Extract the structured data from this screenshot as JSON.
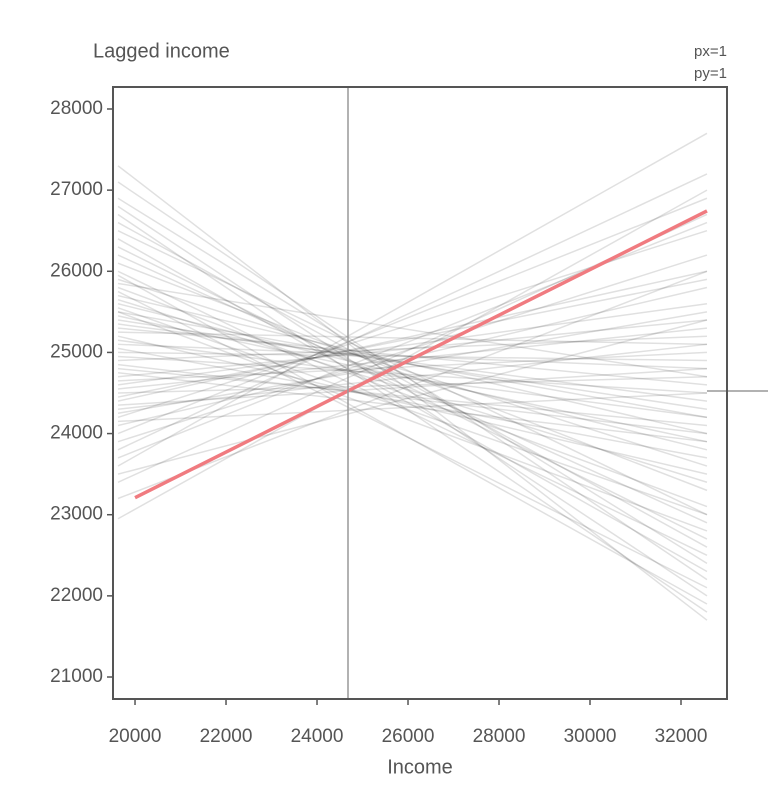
{
  "chart_data": {
    "type": "line",
    "y_label": "Lagged income",
    "x_label": "Income",
    "annotations": [
      "px=1",
      "py=1"
    ],
    "xlim": [
      19516,
      33011
    ],
    "ylim": [
      20729,
      28271
    ],
    "xticks": [
      20000,
      22000,
      24000,
      26000,
      28000,
      30000,
      32000
    ],
    "yticks": [
      21000,
      22000,
      23000,
      24000,
      25000,
      26000,
      27000,
      28000
    ],
    "x": [
      19626,
      32571
    ],
    "line_color": "#000000",
    "line_alpha": 0.12,
    "series": [
      {
        "values": [
          27300,
          21700
        ]
      },
      {
        "values": [
          27100,
          22200
        ]
      },
      {
        "values": [
          26800,
          22000
        ]
      },
      {
        "values": [
          26600,
          22600
        ]
      },
      {
        "values": [
          26400,
          22300
        ]
      },
      {
        "values": [
          26200,
          22900
        ]
      },
      {
        "values": [
          26100,
          23300
        ]
      },
      {
        "values": [
          26000,
          22500
        ]
      },
      {
        "values": [
          25900,
          23600
        ]
      },
      {
        "values": [
          25800,
          23100
        ]
      },
      {
        "values": [
          25700,
          24000
        ]
      },
      {
        "values": [
          25600,
          23800
        ]
      },
      {
        "values": [
          25500,
          22800
        ]
      },
      {
        "values": [
          25400,
          24300
        ]
      },
      {
        "values": [
          25300,
          24600
        ]
      },
      {
        "values": [
          25200,
          23500
        ]
      },
      {
        "values": [
          25100,
          24800
        ]
      },
      {
        "values": [
          25000,
          24900
        ]
      },
      {
        "values": [
          24900,
          25200
        ]
      },
      {
        "values": [
          24800,
          24100
        ]
      },
      {
        "values": [
          24700,
          25400
        ]
      },
      {
        "values": [
          24600,
          25600
        ]
      },
      {
        "values": [
          24500,
          24700
        ]
      },
      {
        "values": [
          24400,
          26000
        ]
      },
      {
        "values": [
          24300,
          25100
        ]
      },
      {
        "values": [
          24200,
          26500
        ]
      },
      {
        "values": [
          24100,
          25800
        ]
      },
      {
        "values": [
          24000,
          26900
        ]
      },
      {
        "values": [
          23900,
          26200
        ]
      },
      {
        "values": [
          23800,
          27200
        ]
      },
      {
        "values": [
          23600,
          27700
        ]
      },
      {
        "values": [
          23400,
          26700
        ]
      },
      {
        "values": [
          23200,
          26000
        ]
      },
      {
        "values": [
          22950,
          27000
        ]
      },
      {
        "values": [
          25950,
          21900
        ]
      },
      {
        "values": [
          25750,
          22100
        ]
      },
      {
        "values": [
          25650,
          23400
        ]
      },
      {
        "values": [
          25450,
          23900
        ]
      },
      {
        "values": [
          25350,
          24400
        ]
      },
      {
        "values": [
          25150,
          24200
        ]
      },
      {
        "values": [
          24950,
          24500
        ]
      },
      {
        "values": [
          24850,
          24000
        ]
      },
      {
        "values": [
          24650,
          25000
        ]
      },
      {
        "values": [
          24550,
          25300
        ]
      },
      {
        "values": [
          24350,
          24800
        ]
      },
      {
        "values": [
          24250,
          25500
        ]
      },
      {
        "values": [
          25050,
          23700
        ]
      },
      {
        "values": [
          25550,
          23000
        ]
      },
      {
        "values": [
          26300,
          22700
        ]
      },
      {
        "values": [
          26500,
          23000
        ]
      },
      {
        "values": [
          26700,
          21800
        ]
      },
      {
        "values": [
          25850,
          24700
        ]
      },
      {
        "values": [
          24750,
          23900
        ]
      },
      {
        "values": [
          24450,
          25900
        ]
      },
      {
        "values": [
          23700,
          26600
        ]
      },
      {
        "values": [
          23500,
          25400
        ]
      },
      {
        "values": [
          26900,
          22400
        ]
      },
      {
        "values": [
          25250,
          25100
        ]
      },
      {
        "values": [
          24150,
          24500
        ]
      },
      {
        "values": [
          25500,
          24200
        ]
      }
    ],
    "fit": {
      "x": [
        20000,
        32571
      ],
      "values": [
        23210,
        26743
      ],
      "color": "#f07b80"
    },
    "vline": 24681,
    "hline": 24525,
    "ref_color": "#999999",
    "axis_color": "#555555"
  }
}
